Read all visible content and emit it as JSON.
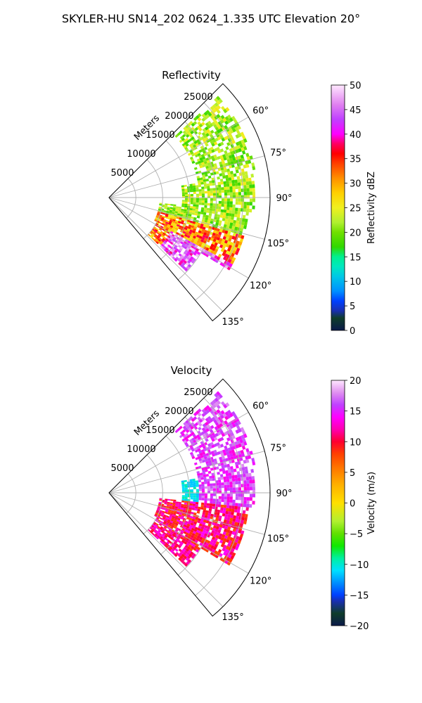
{
  "title": "SKYLER-HU  SN14_202  0624_1.335 UTC Elevation 20°",
  "colors": {
    "reflectivity_stops": [
      [
        0,
        "#0b1a4a"
      ],
      [
        2.5,
        "#0f3d2a"
      ],
      [
        4,
        "#1a2fb0"
      ],
      [
        6,
        "#0040ff"
      ],
      [
        8,
        "#0090ff"
      ],
      [
        11,
        "#00c8e6"
      ],
      [
        13,
        "#00e8c0"
      ],
      [
        15,
        "#00f090"
      ],
      [
        17,
        "#30d800"
      ],
      [
        20,
        "#70e000"
      ],
      [
        22,
        "#b0f030"
      ],
      [
        25,
        "#f0f020"
      ],
      [
        28,
        "#ffd000"
      ],
      [
        31,
        "#ff9000"
      ],
      [
        34,
        "#ff4000"
      ],
      [
        36,
        "#ff0000"
      ],
      [
        38,
        "#ff0060"
      ],
      [
        40,
        "#ff00ff"
      ],
      [
        43,
        "#c040ff"
      ],
      [
        46,
        "#e080f0"
      ],
      [
        50,
        "#ffe8ff"
      ]
    ],
    "velocity_stops": [
      [
        -20,
        "#0b1a4a"
      ],
      [
        -18,
        "#0f3d2a"
      ],
      [
        -16,
        "#1a2fb0"
      ],
      [
        -15,
        "#0040ff"
      ],
      [
        -13,
        "#0090ff"
      ],
      [
        -11,
        "#00e0ff"
      ],
      [
        -9,
        "#00f0a0"
      ],
      [
        -7,
        "#10e800"
      ],
      [
        -5,
        "#60e000"
      ],
      [
        -3,
        "#b0f030"
      ],
      [
        0,
        "#ffe000"
      ],
      [
        3,
        "#ffb000"
      ],
      [
        6,
        "#ff7000"
      ],
      [
        8,
        "#ff4000"
      ],
      [
        10,
        "#ff0030"
      ],
      [
        12,
        "#ff00b0"
      ],
      [
        14,
        "#ff00ff"
      ],
      [
        16,
        "#c040ff"
      ],
      [
        18,
        "#e090f0"
      ],
      [
        20,
        "#ffe8ff"
      ]
    ]
  },
  "chart_data": [
    {
      "type": "polar-sector",
      "title": "Reflectivity",
      "radial_label": "Meters",
      "radial_ticks": [
        "5000",
        "10000",
        "15000",
        "20000",
        "25000"
      ],
      "radial_values": [
        5000,
        10000,
        15000,
        20000,
        25000
      ],
      "radial_max": 30000,
      "theta_ticks": [
        "60°",
        "75°",
        "90°",
        "105°",
        "120°",
        "135°"
      ],
      "theta_values": [
        60,
        75,
        90,
        105,
        120,
        135
      ],
      "theta_range": [
        45,
        140
      ],
      "grid": true,
      "colorbar": {
        "label": "Reflectivity dBZ",
        "ticks": [
          "0",
          "5",
          "10",
          "15",
          "20",
          "25",
          "30",
          "35",
          "40",
          "45",
          "50"
        ],
        "range": [
          0,
          50
        ]
      }
    },
    {
      "type": "polar-sector",
      "title": "Velocity",
      "radial_label": "Meters",
      "radial_ticks": [
        "5000",
        "10000",
        "15000",
        "20000",
        "25000"
      ],
      "radial_values": [
        5000,
        10000,
        15000,
        20000,
        25000
      ],
      "radial_max": 30000,
      "theta_ticks": [
        "60°",
        "75°",
        "90°",
        "105°",
        "120°",
        "135°"
      ],
      "theta_values": [
        60,
        75,
        90,
        105,
        120,
        135
      ],
      "theta_range": [
        45,
        140
      ],
      "grid": true,
      "colorbar": {
        "label": "Velocity (m/s)",
        "ticks": [
          "20",
          "15",
          "10",
          "5",
          "0",
          "−5",
          "−10",
          "−15",
          "−20"
        ],
        "range": [
          -20,
          20
        ]
      }
    }
  ]
}
